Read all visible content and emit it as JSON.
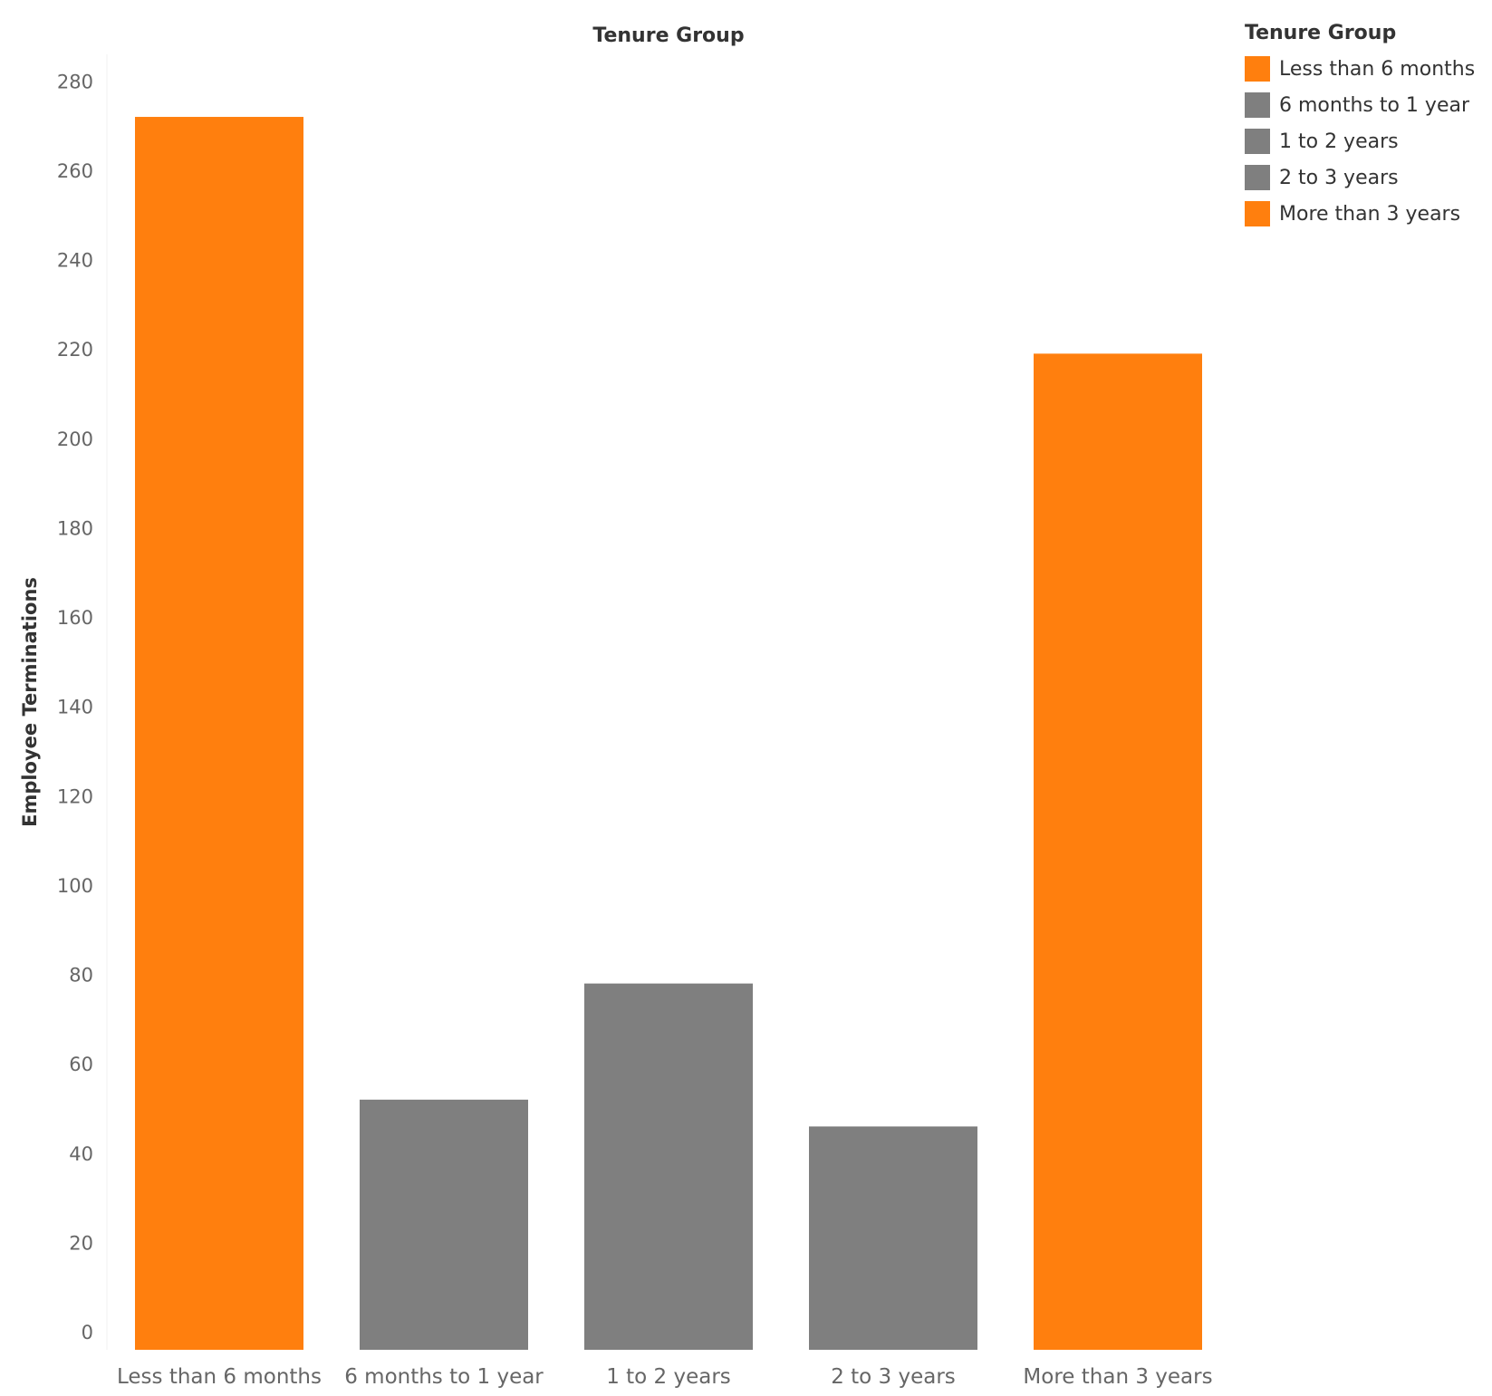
{
  "chart_data": {
    "type": "bar",
    "title": "Tenure Group",
    "ylabel": "Employee Terminations",
    "xlabel": "",
    "categories": [
      "Less than 6 months",
      "6 months to 1 year",
      "1 to 2 years",
      "2 to 3 years",
      "More than 3 years"
    ],
    "values": [
      276,
      56,
      82,
      50,
      223
    ],
    "colors": [
      "#ff7f0e",
      "#7f7f7f",
      "#7f7f7f",
      "#7f7f7f",
      "#ff7f0e"
    ],
    "ylim": [
      0,
      290
    ],
    "yticks": [
      "0",
      "20",
      "40",
      "60",
      "80",
      "100",
      "120",
      "140",
      "160",
      "180",
      "200",
      "220",
      "240",
      "260",
      "280"
    ],
    "grid": false,
    "legend": {
      "title": "Tenure Group",
      "placement": "top-right",
      "items": [
        {
          "label": "Less than 6 months",
          "color": "#ff7f0e"
        },
        {
          "label": "6 months to 1 year",
          "color": "#7f7f7f"
        },
        {
          "label": "1 to 2 years",
          "color": "#7f7f7f"
        },
        {
          "label": "2 to 3 years",
          "color": "#7f7f7f"
        },
        {
          "label": "More than 3 years",
          "color": "#ff7f0e"
        }
      ]
    }
  }
}
